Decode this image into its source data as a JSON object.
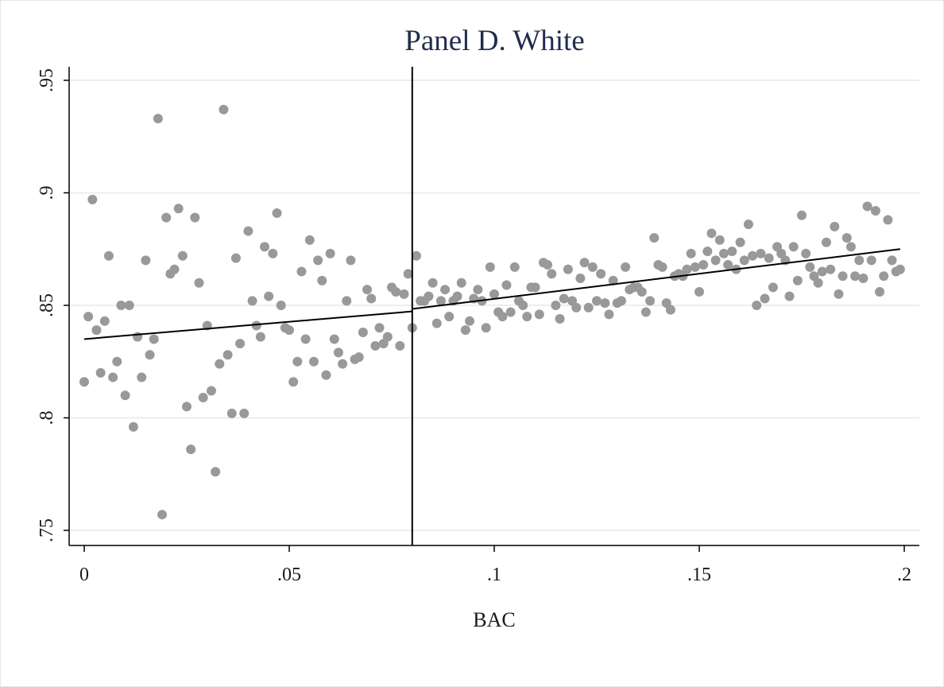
{
  "chart_data": {
    "type": "scatter",
    "title": "Panel D. White",
    "xlabel": "BAC",
    "ylabel": "",
    "xlim": [
      0,
      0.2
    ],
    "ylim": [
      0.75,
      0.95
    ],
    "x_ticks": [
      0,
      0.05,
      0.1,
      0.15,
      0.2
    ],
    "x_tick_labels": [
      "0",
      ".05",
      ".1",
      ".15",
      ".2"
    ],
    "y_ticks": [
      0.75,
      0.8,
      0.85,
      0.9,
      0.95
    ],
    "y_tick_labels": [
      ".75",
      ".8",
      ".85",
      ".9",
      ".95"
    ],
    "grid": "horizontal",
    "cutoff_x": 0.08,
    "marker_color": "#999999",
    "line_color": "#000000",
    "fit_lines": [
      {
        "x": [
          0,
          0.08
        ],
        "y": [
          0.835,
          0.8473
        ]
      },
      {
        "x": [
          0.08,
          0.199
        ],
        "y": [
          0.8484,
          0.875
        ]
      }
    ],
    "points": [
      [
        0.0,
        0.816
      ],
      [
        0.001,
        0.845
      ],
      [
        0.002,
        0.897
      ],
      [
        0.003,
        0.839
      ],
      [
        0.004,
        0.82
      ],
      [
        0.005,
        0.843
      ],
      [
        0.006,
        0.872
      ],
      [
        0.007,
        0.818
      ],
      [
        0.008,
        0.825
      ],
      [
        0.009,
        0.85
      ],
      [
        0.01,
        0.81
      ],
      [
        0.011,
        0.85
      ],
      [
        0.012,
        0.796
      ],
      [
        0.013,
        0.836
      ],
      [
        0.014,
        0.818
      ],
      [
        0.015,
        0.87
      ],
      [
        0.016,
        0.828
      ],
      [
        0.017,
        0.835
      ],
      [
        0.018,
        0.933
      ],
      [
        0.019,
        0.757
      ],
      [
        0.02,
        0.889
      ],
      [
        0.021,
        0.864
      ],
      [
        0.022,
        0.866
      ],
      [
        0.023,
        0.893
      ],
      [
        0.024,
        0.872
      ],
      [
        0.025,
        0.805
      ],
      [
        0.026,
        0.786
      ],
      [
        0.027,
        0.889
      ],
      [
        0.028,
        0.86
      ],
      [
        0.029,
        0.809
      ],
      [
        0.03,
        0.841
      ],
      [
        0.031,
        0.812
      ],
      [
        0.032,
        0.776
      ],
      [
        0.033,
        0.824
      ],
      [
        0.034,
        0.937
      ],
      [
        0.035,
        0.828
      ],
      [
        0.036,
        0.802
      ],
      [
        0.037,
        0.871
      ],
      [
        0.038,
        0.833
      ],
      [
        0.039,
        0.802
      ],
      [
        0.04,
        0.883
      ],
      [
        0.041,
        0.852
      ],
      [
        0.042,
        0.841
      ],
      [
        0.043,
        0.836
      ],
      [
        0.044,
        0.876
      ],
      [
        0.045,
        0.854
      ],
      [
        0.046,
        0.873
      ],
      [
        0.047,
        0.891
      ],
      [
        0.048,
        0.85
      ],
      [
        0.049,
        0.84
      ],
      [
        0.05,
        0.839
      ],
      [
        0.051,
        0.816
      ],
      [
        0.052,
        0.825
      ],
      [
        0.053,
        0.865
      ],
      [
        0.054,
        0.835
      ],
      [
        0.055,
        0.879
      ],
      [
        0.056,
        0.825
      ],
      [
        0.057,
        0.87
      ],
      [
        0.058,
        0.861
      ],
      [
        0.059,
        0.819
      ],
      [
        0.06,
        0.873
      ],
      [
        0.061,
        0.835
      ],
      [
        0.062,
        0.829
      ],
      [
        0.063,
        0.824
      ],
      [
        0.064,
        0.852
      ],
      [
        0.065,
        0.87
      ],
      [
        0.066,
        0.826
      ],
      [
        0.067,
        0.827
      ],
      [
        0.068,
        0.838
      ],
      [
        0.069,
        0.857
      ],
      [
        0.07,
        0.853
      ],
      [
        0.071,
        0.832
      ],
      [
        0.072,
        0.84
      ],
      [
        0.073,
        0.833
      ],
      [
        0.074,
        0.836
      ],
      [
        0.075,
        0.858
      ],
      [
        0.076,
        0.856
      ],
      [
        0.077,
        0.832
      ],
      [
        0.078,
        0.855
      ],
      [
        0.079,
        0.864
      ],
      [
        0.08,
        0.84
      ],
      [
        0.081,
        0.872
      ],
      [
        0.082,
        0.852
      ],
      [
        0.083,
        0.852
      ],
      [
        0.084,
        0.854
      ],
      [
        0.085,
        0.86
      ],
      [
        0.086,
        0.842
      ],
      [
        0.087,
        0.852
      ],
      [
        0.088,
        0.857
      ],
      [
        0.089,
        0.845
      ],
      [
        0.09,
        0.852
      ],
      [
        0.091,
        0.854
      ],
      [
        0.092,
        0.86
      ],
      [
        0.093,
        0.839
      ],
      [
        0.094,
        0.843
      ],
      [
        0.095,
        0.853
      ],
      [
        0.096,
        0.857
      ],
      [
        0.097,
        0.852
      ],
      [
        0.098,
        0.84
      ],
      [
        0.099,
        0.867
      ],
      [
        0.1,
        0.855
      ],
      [
        0.101,
        0.847
      ],
      [
        0.102,
        0.845
      ],
      [
        0.103,
        0.859
      ],
      [
        0.104,
        0.847
      ],
      [
        0.105,
        0.867
      ],
      [
        0.106,
        0.852
      ],
      [
        0.107,
        0.85
      ],
      [
        0.108,
        0.845
      ],
      [
        0.109,
        0.858
      ],
      [
        0.11,
        0.858
      ],
      [
        0.111,
        0.846
      ],
      [
        0.112,
        0.869
      ],
      [
        0.113,
        0.868
      ],
      [
        0.114,
        0.864
      ],
      [
        0.115,
        0.85
      ],
      [
        0.116,
        0.844
      ],
      [
        0.117,
        0.853
      ],
      [
        0.118,
        0.866
      ],
      [
        0.119,
        0.852
      ],
      [
        0.12,
        0.849
      ],
      [
        0.121,
        0.862
      ],
      [
        0.122,
        0.869
      ],
      [
        0.123,
        0.849
      ],
      [
        0.124,
        0.867
      ],
      [
        0.125,
        0.852
      ],
      [
        0.126,
        0.864
      ],
      [
        0.127,
        0.851
      ],
      [
        0.128,
        0.846
      ],
      [
        0.129,
        0.861
      ],
      [
        0.13,
        0.851
      ],
      [
        0.131,
        0.852
      ],
      [
        0.132,
        0.867
      ],
      [
        0.133,
        0.857
      ],
      [
        0.134,
        0.858
      ],
      [
        0.135,
        0.858
      ],
      [
        0.136,
        0.856
      ],
      [
        0.137,
        0.847
      ],
      [
        0.138,
        0.852
      ],
      [
        0.139,
        0.88
      ],
      [
        0.14,
        0.868
      ],
      [
        0.141,
        0.867
      ],
      [
        0.142,
        0.851
      ],
      [
        0.143,
        0.848
      ],
      [
        0.144,
        0.863
      ],
      [
        0.145,
        0.864
      ],
      [
        0.146,
        0.863
      ],
      [
        0.147,
        0.866
      ],
      [
        0.148,
        0.873
      ],
      [
        0.149,
        0.867
      ],
      [
        0.15,
        0.856
      ],
      [
        0.151,
        0.868
      ],
      [
        0.152,
        0.874
      ],
      [
        0.153,
        0.882
      ],
      [
        0.154,
        0.87
      ],
      [
        0.155,
        0.879
      ],
      [
        0.156,
        0.873
      ],
      [
        0.157,
        0.868
      ],
      [
        0.158,
        0.874
      ],
      [
        0.159,
        0.866
      ],
      [
        0.16,
        0.878
      ],
      [
        0.161,
        0.87
      ],
      [
        0.162,
        0.886
      ],
      [
        0.163,
        0.872
      ],
      [
        0.164,
        0.85
      ],
      [
        0.165,
        0.873
      ],
      [
        0.166,
        0.853
      ],
      [
        0.167,
        0.871
      ],
      [
        0.168,
        0.858
      ],
      [
        0.169,
        0.876
      ],
      [
        0.17,
        0.873
      ],
      [
        0.171,
        0.87
      ],
      [
        0.172,
        0.854
      ],
      [
        0.173,
        0.876
      ],
      [
        0.174,
        0.861
      ],
      [
        0.175,
        0.89
      ],
      [
        0.176,
        0.873
      ],
      [
        0.177,
        0.867
      ],
      [
        0.178,
        0.863
      ],
      [
        0.179,
        0.86
      ],
      [
        0.18,
        0.865
      ],
      [
        0.181,
        0.878
      ],
      [
        0.182,
        0.866
      ],
      [
        0.183,
        0.885
      ],
      [
        0.184,
        0.855
      ],
      [
        0.185,
        0.863
      ],
      [
        0.186,
        0.88
      ],
      [
        0.187,
        0.876
      ],
      [
        0.188,
        0.863
      ],
      [
        0.189,
        0.87
      ],
      [
        0.19,
        0.862
      ],
      [
        0.191,
        0.894
      ],
      [
        0.192,
        0.87
      ],
      [
        0.193,
        0.892
      ],
      [
        0.194,
        0.856
      ],
      [
        0.195,
        0.863
      ],
      [
        0.196,
        0.888
      ],
      [
        0.197,
        0.87
      ],
      [
        0.198,
        0.865
      ],
      [
        0.199,
        0.866
      ]
    ]
  }
}
